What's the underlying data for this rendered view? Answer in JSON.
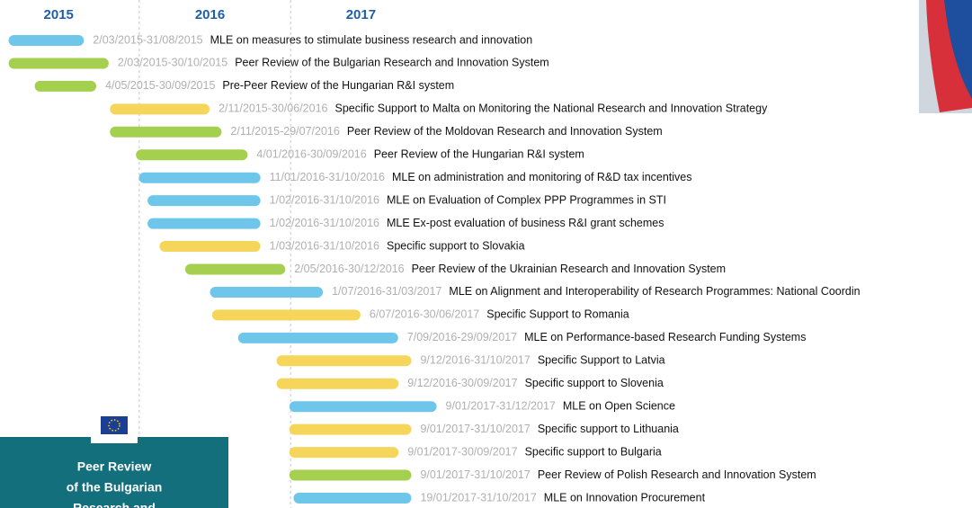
{
  "chart_data": {
    "type": "gantt",
    "years": [
      "2015",
      "2016",
      "2017"
    ],
    "xlim": [
      "2015-01-01",
      "2018-01-01"
    ],
    "year_boundaries": [
      "2016-01-01",
      "2017-01-01"
    ],
    "tasks": [
      {
        "start": "2015-03-02",
        "end": "2015-08-31",
        "value_label": "2/03/2015-31/08/2015",
        "label": "MLE on measures to stimulate business research and innovation",
        "color": "#6ec6ea"
      },
      {
        "start": "2015-03-02",
        "end": "2015-10-30",
        "value_label": "2/03/2015-30/10/2015",
        "label": "Peer Review of the Bulgarian Research and Innovation System",
        "color": "#a5cf4f"
      },
      {
        "start": "2015-05-04",
        "end": "2015-09-30",
        "value_label": "4/05/2015-30/09/2015",
        "label": "Pre-Peer Review of the Hungarian R&I system",
        "color": "#a5cf4f"
      },
      {
        "start": "2015-11-02",
        "end": "2016-06-30",
        "value_label": "2/11/2015-30/06/2016",
        "label": "Specific Support to Malta on Monitoring the National Research and Innovation Strategy",
        "color": "#f5d65b"
      },
      {
        "start": "2015-11-02",
        "end": "2016-07-29",
        "value_label": "2/11/2015-29/07/2016",
        "label": "Peer Review of the Moldovan Research and Innovation System",
        "color": "#a5cf4f"
      },
      {
        "start": "2016-01-04",
        "end": "2016-09-30",
        "value_label": "4/01/2016-30/09/2016",
        "label": "Peer Review of the Hungarian R&I system",
        "color": "#a5cf4f"
      },
      {
        "start": "2016-01-11",
        "end": "2016-10-31",
        "value_label": "11/01/2016-31/10/2016",
        "label": "MLE on administration and monitoring of R&D tax incentives",
        "color": "#6ec6ea"
      },
      {
        "start": "2016-02-01",
        "end": "2016-10-31",
        "value_label": "1/02/2016-31/10/2016",
        "label": "MLE on Evaluation of Complex PPP Programmes in STI",
        "color": "#6ec6ea"
      },
      {
        "start": "2016-02-01",
        "end": "2016-10-31",
        "value_label": "1/02/2016-31/10/2016",
        "label": "MLE Ex-post evaluation of business R&I grant schemes",
        "color": "#6ec6ea"
      },
      {
        "start": "2016-03-01",
        "end": "2016-10-31",
        "value_label": "1/03/2016-31/10/2016",
        "label": "Specific support to Slovakia",
        "color": "#f5d65b"
      },
      {
        "start": "2016-05-02",
        "end": "2016-12-30",
        "value_label": "2/05/2016-30/12/2016",
        "label": "Peer Review of the Ukrainian Research and Innovation System",
        "color": "#a5cf4f"
      },
      {
        "start": "2016-07-01",
        "end": "2017-03-31",
        "value_label": "1/07/2016-31/03/2017",
        "label": "MLE on Alignment and Interoperability of Research Programmes: National Coordin",
        "color": "#6ec6ea"
      },
      {
        "start": "2016-07-06",
        "end": "2017-06-30",
        "value_label": "6/07/2016-30/06/2017",
        "label": "Specific Support to Romania",
        "color": "#f5d65b"
      },
      {
        "start": "2016-09-07",
        "end": "2017-09-29",
        "value_label": "7/09/2016-29/09/2017",
        "label": "MLE on Performance-based Research Funding Systems",
        "color": "#6ec6ea"
      },
      {
        "start": "2016-12-09",
        "end": "2017-10-31",
        "value_label": "9/12/2016-31/10/2017",
        "label": "Specific Support to Latvia",
        "color": "#f5d65b"
      },
      {
        "start": "2016-12-09",
        "end": "2017-09-30",
        "value_label": "9/12/2016-30/09/2017",
        "label": "Specific support to Slovenia",
        "color": "#f5d65b"
      },
      {
        "start": "2017-01-09",
        "end": "2017-12-31",
        "value_label": "9/01/2017-31/12/2017",
        "label": "MLE on Open Science",
        "color": "#6ec6ea"
      },
      {
        "start": "2017-01-09",
        "end": "2017-10-31",
        "value_label": "9/01/2017-31/10/2017",
        "label": "Specific support to Lithuania",
        "color": "#f5d65b"
      },
      {
        "start": "2017-01-09",
        "end": "2017-09-30",
        "value_label": "9/01/2017-30/09/2017",
        "label": "Specific support to Bulgaria",
        "color": "#f5d65b"
      },
      {
        "start": "2017-01-09",
        "end": "2017-10-31",
        "value_label": "9/01/2017-31/10/2017",
        "label": "Peer Review of Polish Research and Innovation System",
        "color": "#a5cf4f"
      },
      {
        "start": "2017-01-19",
        "end": "2017-10-31",
        "value_label": "19/01/2017-31/10/2017",
        "label": "MLE on Innovation Procurement",
        "color": "#6ec6ea"
      }
    ]
  },
  "cover": {
    "lines": [
      "Peer Review",
      "of the Bulgarian",
      "Research and"
    ]
  }
}
